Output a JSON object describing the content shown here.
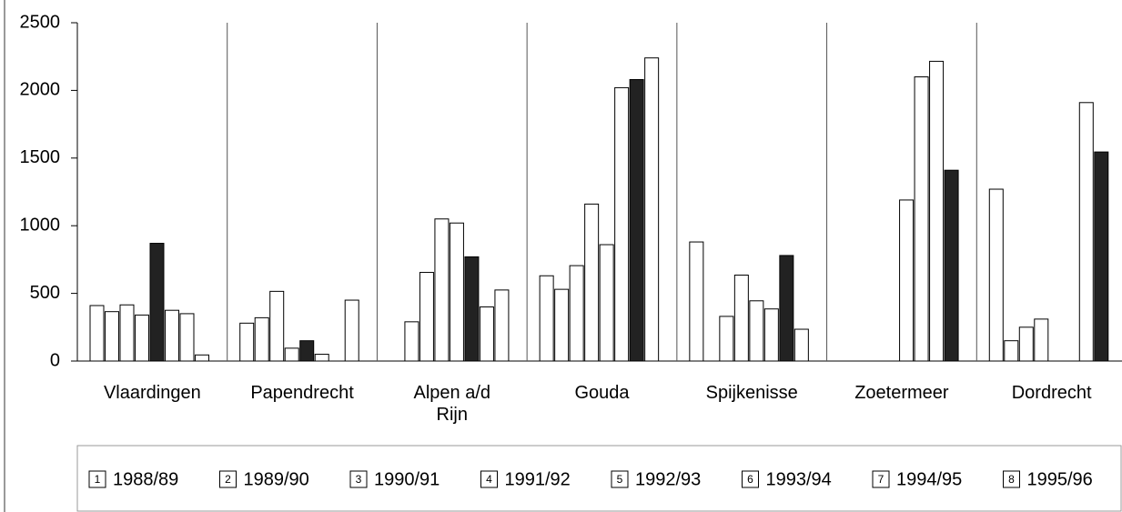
{
  "chart_data": {
    "type": "bar",
    "categories": [
      "Vlaardingen",
      "Papendrecht",
      "Alpen a/d\nRijn",
      "Gouda",
      "Spijkenisse",
      "Zoetermeer",
      "Dordrecht"
    ],
    "series": [
      {
        "name": "1988/89",
        "marker": "1",
        "colors": [
          "#ffffff",
          "#ffffff",
          "#ffffff",
          "#ffffff",
          "#ffffff",
          "#ffffff",
          "#ffffff"
        ],
        "values": [
          410,
          280,
          null,
          630,
          880,
          null,
          1270
        ]
      },
      {
        "name": "1989/90",
        "marker": "2",
        "colors": [
          "#ffffff",
          "#ffffff",
          "#ffffff",
          "#ffffff",
          "#ffffff",
          "#ffffff",
          "#ffffff"
        ],
        "values": [
          365,
          320,
          290,
          530,
          null,
          null,
          150
        ]
      },
      {
        "name": "1990/91",
        "marker": "3",
        "colors": [
          "#ffffff",
          "#ffffff",
          "#ffffff",
          "#ffffff",
          "#ffffff",
          "#ffffff",
          "#ffffff"
        ],
        "values": [
          415,
          515,
          655,
          705,
          330,
          null,
          250
        ]
      },
      {
        "name": "1991/92",
        "marker": "4",
        "colors": [
          "#ffffff",
          "#ffffff",
          "#ffffff",
          "#ffffff",
          "#ffffff",
          "#ffffff",
          "#ffffff"
        ],
        "values": [
          340,
          95,
          1050,
          1160,
          635,
          null,
          310
        ]
      },
      {
        "name": "1992/93",
        "marker": "5",
        "colors": [
          "#222222",
          "#222222",
          "#ffffff",
          "#ffffff",
          "#ffffff",
          "#ffffff",
          "#ffffff"
        ],
        "values": [
          870,
          150,
          1020,
          860,
          445,
          1190,
          null
        ]
      },
      {
        "name": "1993/94",
        "marker": "6",
        "colors": [
          "#ffffff",
          "#ffffff",
          "#222222",
          "#ffffff",
          "#ffffff",
          "#ffffff",
          "#ffffff"
        ],
        "values": [
          375,
          50,
          770,
          2020,
          385,
          2100,
          null
        ]
      },
      {
        "name": "1994/95",
        "marker": "7",
        "colors": [
          "#ffffff",
          "#ffffff",
          "#ffffff",
          "#222222",
          "#222222",
          "#ffffff",
          "#ffffff"
        ],
        "values": [
          350,
          null,
          400,
          2080,
          780,
          2215,
          1910
        ]
      },
      {
        "name": "1995/96",
        "marker": "8",
        "colors": [
          "#ffffff",
          "#ffffff",
          "#ffffff",
          "#ffffff",
          "#ffffff",
          "#222222",
          "#222222"
        ],
        "values": [
          45,
          450,
          525,
          2240,
          235,
          1410,
          1545
        ]
      }
    ],
    "ylim": [
      0,
      2500
    ],
    "yticks": [
      0,
      500,
      1000,
      1500,
      2000,
      2500
    ]
  }
}
